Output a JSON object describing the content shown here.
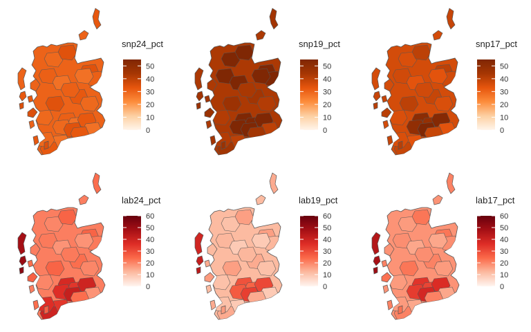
{
  "panels": [
    {
      "id": "snp24",
      "title": "snp24_pct",
      "palette": "oranges",
      "legend": {
        "min": 0,
        "max": 55,
        "ticks": [
          "0",
          "10",
          "20",
          "30",
          "40",
          "50"
        ]
      },
      "overall_level": 0.55,
      "darker_areas": [],
      "dark_islands": false
    },
    {
      "id": "snp19",
      "title": "snp19_pct",
      "palette": "oranges",
      "legend": {
        "min": 0,
        "max": 55,
        "ticks": [
          "0",
          "10",
          "20",
          "30",
          "40",
          "50"
        ]
      },
      "overall_level": 0.78,
      "darker_areas": [
        "central-belt",
        "north-east",
        "highlands"
      ],
      "dark_islands": false
    },
    {
      "id": "snp17",
      "title": "snp17_pct",
      "palette": "oranges",
      "legend": {
        "min": 0,
        "max": 55,
        "ticks": [
          "0",
          "10",
          "20",
          "30",
          "40",
          "50"
        ]
      },
      "overall_level": 0.66,
      "darker_areas": [
        "central-belt"
      ],
      "dark_islands": false
    },
    {
      "id": "lab24",
      "title": "lab24_pct",
      "palette": "reds",
      "legend": {
        "min": 0,
        "max": 60,
        "ticks": [
          "0",
          "10",
          "20",
          "30",
          "40",
          "50",
          "60"
        ]
      },
      "overall_level": 0.35,
      "darker_areas": [
        "central-belt",
        "south-west"
      ],
      "dark_islands": true
    },
    {
      "id": "lab19",
      "title": "lab19_pct",
      "palette": "reds",
      "legend": {
        "min": 0,
        "max": 60,
        "ticks": [
          "0",
          "10",
          "20",
          "30",
          "40",
          "50",
          "60"
        ]
      },
      "overall_level": 0.2,
      "darker_areas": [
        "central-belt"
      ],
      "dark_islands": true
    },
    {
      "id": "lab17",
      "title": "lab17_pct",
      "palette": "reds",
      "legend": {
        "min": 0,
        "max": 60,
        "ticks": [
          "0",
          "10",
          "20",
          "30",
          "40",
          "50",
          "60"
        ]
      },
      "overall_level": 0.3,
      "darker_areas": [
        "central-belt"
      ],
      "dark_islands": true
    }
  ],
  "colors": {
    "oranges": [
      "#fff5eb",
      "#fdd0a2",
      "#fd8d3c",
      "#e6550d",
      "#a63603",
      "#7f2704"
    ],
    "reds": [
      "#fff5f0",
      "#fcbba1",
      "#fb6a4a",
      "#de2d26",
      "#a50f15",
      "#67000d"
    ],
    "border": "#555555"
  }
}
